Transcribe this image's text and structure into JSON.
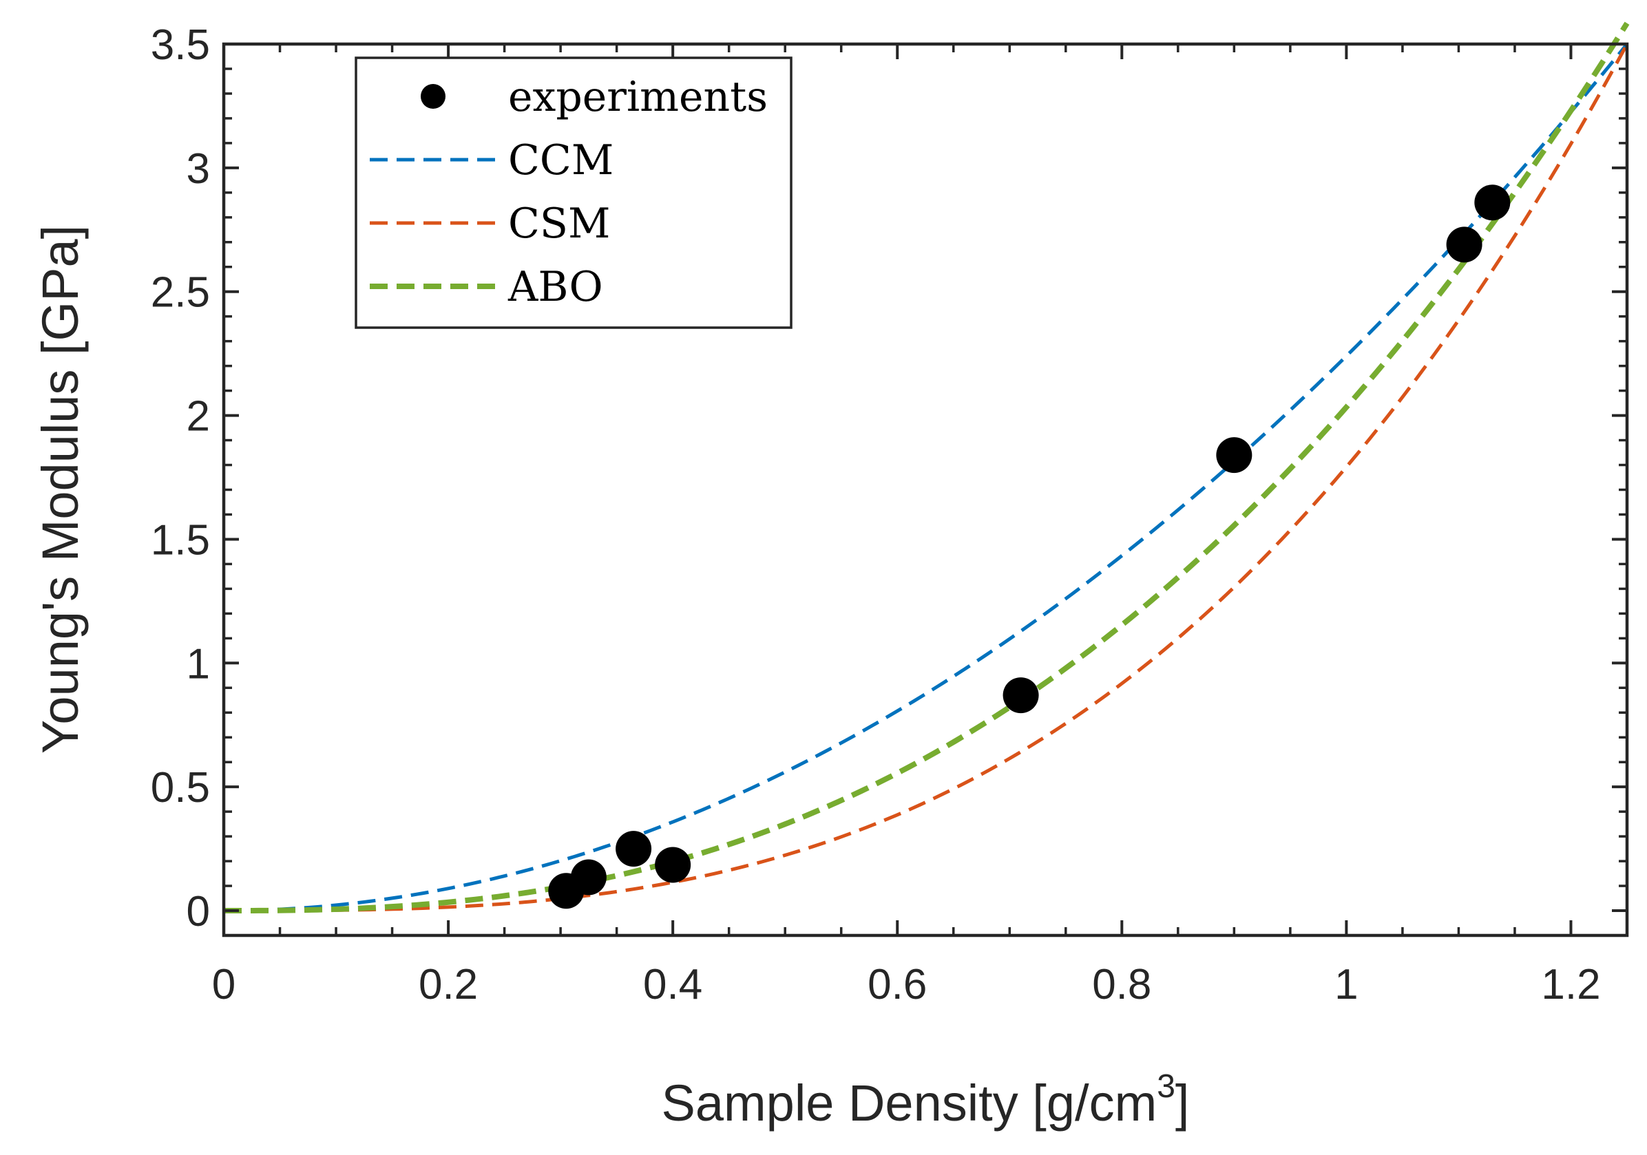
{
  "chart_data": {
    "type": "scatter",
    "title": "",
    "xlabel": "Sample Density [g/cm",
    "xlabel_sup": "3",
    "xlabel_end": "]",
    "ylabel": "Young's Modulus [GPa]",
    "xlim": [
      0,
      1.25
    ],
    "ylim": [
      -0.1,
      3.5
    ],
    "xticks": [
      0,
      0.2,
      0.4,
      0.6,
      0.8,
      1.0,
      1.2
    ],
    "xtick_labels": [
      "0",
      "0.2",
      "0.4",
      "0.6",
      "0.8",
      "1",
      "1.2"
    ],
    "yticks": [
      0,
      0.5,
      1.0,
      1.5,
      2.0,
      2.5,
      3.0,
      3.5
    ],
    "ytick_labels": [
      "0",
      "0.5",
      "1",
      "1.5",
      "2",
      "2.5",
      "3",
      "3.5"
    ],
    "grid": false,
    "legend": {
      "location": "top-left",
      "entries": [
        "experiments",
        "CCM",
        "CSM",
        "ABO"
      ]
    },
    "series": [
      {
        "name": "experiments",
        "kind": "points",
        "color": "#000000",
        "x": [
          0.305,
          0.325,
          0.365,
          0.4,
          0.71,
          0.9,
          1.105,
          1.13
        ],
        "y": [
          0.08,
          0.135,
          0.25,
          0.185,
          0.87,
          1.84,
          2.69,
          2.86
        ]
      },
      {
        "name": "CCM",
        "kind": "curve",
        "color": "#0072BD",
        "model": "power",
        "coefficient": 2.24,
        "exponent": 2.0
      },
      {
        "name": "CSM",
        "kind": "curve",
        "color": "#D95319",
        "model": "power",
        "coefficient": 1.792,
        "exponent": 3.0
      },
      {
        "name": "ABO",
        "kind": "curve",
        "color": "#77AC30",
        "model": "power",
        "coefficient": 2.0335,
        "exponent": 2.54
      }
    ]
  }
}
